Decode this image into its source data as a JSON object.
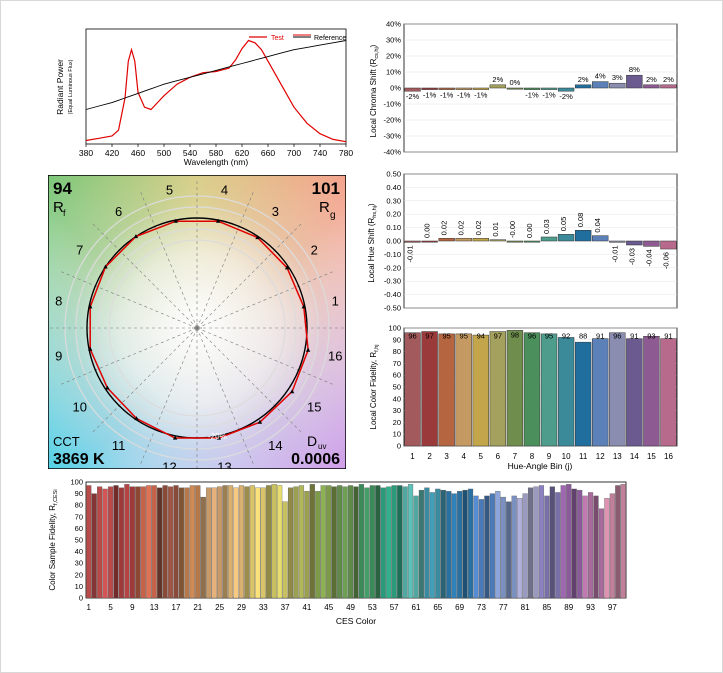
{
  "spectrum": {
    "ylabel_main": "Radiant Power",
    "ylabel_sub": "(Equal Luminous Flux)",
    "xlabel": "Wavelength (nm)",
    "xticks": [
      380,
      420,
      460,
      500,
      540,
      580,
      620,
      660,
      700,
      740,
      780
    ],
    "legend": [
      "Test",
      "Reference"
    ]
  },
  "vector": {
    "rf_value": "94",
    "rf_label": "R",
    "rf_sub": "f",
    "rg_value": "101",
    "rg_label": "R",
    "rg_sub": "g",
    "cct_label": "CCT",
    "cct_value": "3869 K",
    "duv_label": "D",
    "duv_sub": "uv",
    "duv_value": "0.0006",
    "ring_label": "-20%",
    "bins": [
      "1",
      "2",
      "3",
      "4",
      "5",
      "6",
      "7",
      "8",
      "9",
      "10",
      "11",
      "12",
      "13",
      "14",
      "15",
      "16"
    ]
  },
  "chroma": {
    "ylabel": "Local Chroma Shift (R",
    "ylabel_sub": "cs,hj",
    "ylabel_end": ")",
    "yticks": [
      "40%",
      "30%",
      "20%",
      "10%",
      "0%",
      "-10%",
      "-20%",
      "-30%",
      "-40%"
    ],
    "labels": [
      "-2%",
      "-1%",
      "-1%",
      "-1%",
      "-1%",
      "2%",
      "0%",
      "-1%",
      "-1%",
      "-2%",
      "2%",
      "4%",
      "3%",
      "8%",
      "2%",
      "2%"
    ]
  },
  "hue": {
    "ylabel": "Local Hue Shift (R",
    "ylabel_sub": "hs,hj",
    "ylabel_end": ")",
    "yticks": [
      "0.50",
      "0.40",
      "0.30",
      "0.20",
      "0.10",
      "0.00",
      "-0.10",
      "-0.20",
      "-0.30",
      "-0.40",
      "-0.50"
    ],
    "labels": [
      "-0.01",
      "0.00",
      "0.02",
      "0.02",
      "0.02",
      "0.01",
      "-0.00",
      "0.00",
      "0.03",
      "0.05",
      "0.08",
      "0.04",
      "-0.01",
      "-0.03",
      "-0.04",
      "-0.06"
    ]
  },
  "fidelity": {
    "ylabel": "Local Color Fidelity, R",
    "ylabel_sub": "f,hj",
    "xlabel": "Hue-Angle Bin (j)",
    "yticks": [
      "100",
      "90",
      "80",
      "70",
      "60",
      "50",
      "40",
      "30",
      "20",
      "10",
      "0"
    ]
  },
  "ces": {
    "ylabel": "Color Sample Fidelity, R",
    "ylabel_sub": "f,CESi",
    "xlabel": "CES Color",
    "yticks": [
      "100",
      "90",
      "80",
      "70",
      "60",
      "50",
      "40",
      "30",
      "20",
      "10",
      "0"
    ],
    "xticks": [
      "1",
      "5",
      "9",
      "13",
      "17",
      "21",
      "25",
      "29",
      "33",
      "37",
      "41",
      "45",
      "49",
      "53",
      "57",
      "61",
      "65",
      "69",
      "73",
      "77",
      "81",
      "85",
      "89",
      "93",
      "97"
    ]
  },
  "colors": {
    "test": "#e00000",
    "reference": "#000000",
    "bins": [
      "#a35a5c",
      "#9b3a3a",
      "#b5653f",
      "#c59a62",
      "#c3a54b",
      "#a4a05d",
      "#6f8d4c",
      "#4a8f5c",
      "#4e9d8c",
      "#3a8a9a",
      "#1f6e9e",
      "#5c80b8",
      "#8a8cb0",
      "#6a5a90",
      "#8d5a92",
      "#b76a8c"
    ]
  },
  "chart_data": [
    {
      "type": "line",
      "chart": "spectrum",
      "x": [
        380,
        400,
        420,
        430,
        440,
        445,
        450,
        455,
        460,
        470,
        480,
        490,
        500,
        520,
        540,
        560,
        580,
        600,
        610,
        620,
        630,
        640,
        650,
        660,
        680,
        700,
        720,
        740,
        760,
        780
      ],
      "series": [
        {
          "name": "Test",
          "values": [
            0.03,
            0.05,
            0.07,
            0.12,
            0.4,
            0.72,
            0.82,
            0.72,
            0.45,
            0.32,
            0.3,
            0.36,
            0.42,
            0.52,
            0.58,
            0.62,
            0.63,
            0.66,
            0.73,
            0.83,
            0.9,
            0.88,
            0.82,
            0.72,
            0.52,
            0.32,
            0.18,
            0.09,
            0.04,
            0.02
          ]
        },
        {
          "name": "Reference",
          "values": [
            0.3,
            0.33,
            0.36,
            0.38,
            0.4,
            0.41,
            0.42,
            0.43,
            0.44,
            0.46,
            0.48,
            0.5,
            0.52,
            0.55,
            0.58,
            0.61,
            0.64,
            0.67,
            0.685,
            0.7,
            0.715,
            0.73,
            0.745,
            0.76,
            0.79,
            0.82,
            0.84,
            0.86,
            0.88,
            0.9
          ]
        }
      ],
      "xlim": [
        380,
        780
      ]
    },
    {
      "type": "bar",
      "chart": "local_chroma_shift",
      "categories": [
        "1",
        "2",
        "3",
        "4",
        "5",
        "6",
        "7",
        "8",
        "9",
        "10",
        "11",
        "12",
        "13",
        "14",
        "15",
        "16"
      ],
      "values": [
        -2,
        -1,
        -1,
        -1,
        -1,
        2,
        0,
        -1,
        -1,
        -2,
        2,
        4,
        3,
        8,
        2,
        2
      ],
      "ylim": [
        -40,
        40
      ]
    },
    {
      "type": "bar",
      "chart": "local_hue_shift",
      "categories": [
        "1",
        "2",
        "3",
        "4",
        "5",
        "6",
        "7",
        "8",
        "9",
        "10",
        "11",
        "12",
        "13",
        "14",
        "15",
        "16"
      ],
      "values": [
        -0.01,
        0.0,
        0.02,
        0.02,
        0.02,
        0.01,
        -0.0,
        0.0,
        0.03,
        0.05,
        0.08,
        0.04,
        -0.01,
        -0.03,
        -0.04,
        -0.06
      ],
      "ylim": [
        -0.5,
        0.5
      ]
    },
    {
      "type": "bar",
      "chart": "local_color_fidelity",
      "categories": [
        "1",
        "2",
        "3",
        "4",
        "5",
        "6",
        "7",
        "8",
        "9",
        "10",
        "11",
        "12",
        "13",
        "14",
        "15",
        "16"
      ],
      "values": [
        96,
        97,
        95,
        95,
        94,
        97,
        98,
        96,
        95,
        92,
        88,
        91,
        96,
        91,
        93,
        91
      ],
      "ylim": [
        0,
        100
      ]
    },
    {
      "type": "bar",
      "chart": "ces_fidelity",
      "categories": [
        "1",
        "2",
        "3",
        "4",
        "5",
        "6",
        "7",
        "8",
        "9",
        "10",
        "11",
        "12",
        "13",
        "14",
        "15",
        "16",
        "17",
        "18",
        "19",
        "20",
        "21",
        "22",
        "23",
        "24",
        "25",
        "26",
        "27",
        "28",
        "29",
        "30",
        "31",
        "32",
        "33",
        "34",
        "35",
        "36",
        "37",
        "38",
        "39",
        "40",
        "41",
        "42",
        "43",
        "44",
        "45",
        "46",
        "47",
        "48",
        "49",
        "50",
        "51",
        "52",
        "53",
        "54",
        "55",
        "56",
        "57",
        "58",
        "59",
        "60",
        "61",
        "62",
        "63",
        "64",
        "65",
        "66",
        "67",
        "68",
        "69",
        "70",
        "71",
        "72",
        "73",
        "74",
        "75",
        "76",
        "77",
        "78",
        "79",
        "80",
        "81",
        "82",
        "83",
        "84",
        "85",
        "86",
        "87",
        "88",
        "89",
        "90",
        "91",
        "92",
        "93",
        "94",
        "95",
        "96",
        "97",
        "98",
        "99"
      ],
      "values": [
        97,
        90,
        96,
        94,
        96,
        97,
        95,
        98,
        96,
        96,
        96,
        97,
        97,
        95,
        97,
        96,
        97,
        95,
        95,
        97,
        97,
        87,
        95,
        95,
        96,
        97,
        97,
        95,
        97,
        96,
        97,
        95,
        95,
        97,
        98,
        97,
        83,
        95,
        96,
        97,
        92,
        98,
        92,
        97,
        97,
        96,
        97,
        96,
        97,
        96,
        98,
        95,
        97,
        97,
        95,
        96,
        97,
        97,
        96,
        98,
        88,
        93,
        95,
        91,
        94,
        93,
        92,
        90,
        92,
        93,
        94,
        88,
        85,
        88,
        90,
        92,
        87,
        83,
        88,
        86,
        90,
        95,
        96,
        97,
        88,
        96,
        91,
        97,
        98,
        94,
        93,
        88,
        91,
        88,
        77,
        86,
        90,
        97,
        98
      ],
      "ylim": [
        0,
        100
      ]
    },
    {
      "type": "scatter",
      "chart": "color_vector_graphic",
      "series": [
        {
          "name": "Test",
          "values": [
            0.99,
            0.985,
            0.99,
            0.99,
            0.99,
            1.0,
            1.0,
            0.99,
            0.99,
            0.98,
            0.99,
            1.02,
            1.02,
            1.03,
            1.04,
            1.03
          ]
        },
        {
          "name": "Reference",
          "values": [
            1,
            1,
            1,
            1,
            1,
            1,
            1,
            1,
            1,
            1,
            1,
            1,
            1,
            1,
            1,
            1
          ]
        }
      ]
    }
  ]
}
